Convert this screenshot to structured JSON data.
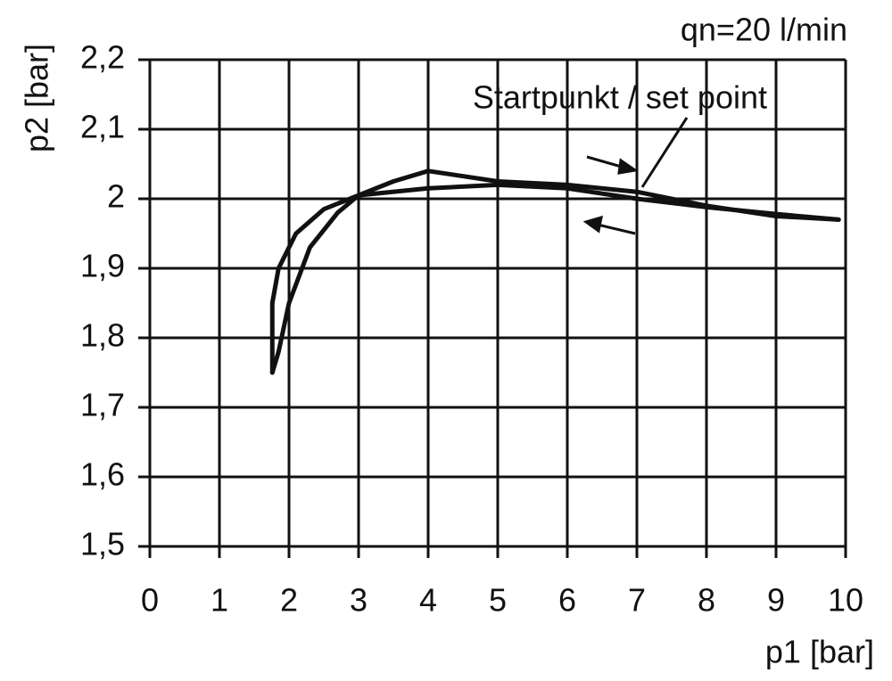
{
  "chart_data": {
    "type": "line",
    "annotations": [
      "qn=20 l/min",
      "Startpunkt / set point"
    ],
    "y_label": "p2 [bar]",
    "x_label": "p1 [bar]",
    "xlim": [
      0,
      10
    ],
    "xticks": [
      0,
      1,
      2,
      3,
      4,
      5,
      6,
      7,
      8,
      9,
      10
    ],
    "ylim": [
      1.5,
      2.2
    ],
    "yticks": [
      {
        "value": 1.5,
        "label": "1,5"
      },
      {
        "value": 1.6,
        "label": "1,6"
      },
      {
        "value": 1.7,
        "label": "1,7"
      },
      {
        "value": 1.8,
        "label": "1,8"
      },
      {
        "value": 1.9,
        "label": "1,9"
      },
      2,
      {
        "value": 2.1,
        "label": "2,1"
      },
      {
        "value": 2.2,
        "label": "2,2"
      }
    ],
    "grid": true,
    "series": [
      {
        "color": "#111111",
        "x": [
          1.76,
          1.76,
          1.85,
          2.1,
          2.5,
          3,
          4,
          5,
          6,
          7,
          8,
          9,
          9.9
        ],
        "values": [
          1.75,
          1.85,
          1.9,
          1.95,
          1.985,
          2.005,
          2.015,
          2.02,
          2.015,
          2.0,
          1.988,
          1.978,
          1.97
        ]
      },
      {
        "color": "#111111",
        "x": [
          1.76,
          1.85,
          2,
          2.3,
          2.7,
          3,
          3.5,
          4,
          5,
          6,
          7,
          8,
          9,
          9.9
        ],
        "values": [
          1.75,
          1.78,
          1.85,
          1.93,
          1.98,
          2.005,
          2.025,
          2.04,
          2.025,
          2.02,
          2.01,
          1.99,
          1.975,
          1.97
        ]
      }
    ]
  }
}
